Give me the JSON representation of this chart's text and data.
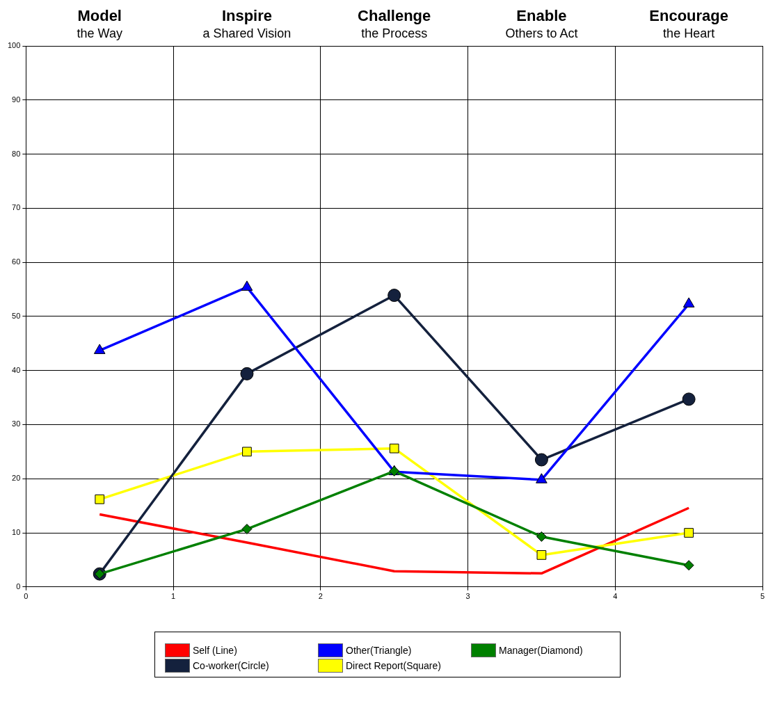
{
  "chart_data": {
    "type": "line",
    "x": [
      0.5,
      1.5,
      2.5,
      3.5,
      4.5
    ],
    "xlim": [
      0,
      5
    ],
    "xticks": [
      0,
      1,
      2,
      3,
      4,
      5
    ],
    "ylim": [
      0,
      100
    ],
    "yticks": [
      0,
      10,
      20,
      30,
      40,
      50,
      60,
      70,
      80,
      90,
      100
    ],
    "grid": true,
    "legend": "bottom",
    "annotations": [
      "Model",
      "the Way",
      "Inspire",
      "a Shared Vision",
      "Challenge",
      "the Process",
      "Enable",
      "Others to Act",
      "Encourage",
      "the Heart"
    ],
    "series": [
      {
        "name": "Self (Line)",
        "color": "#ff0000",
        "marker": "none",
        "values": [
          13.4,
          8.2,
          2.9,
          2.5,
          14.6
        ]
      },
      {
        "name": "Other(Triangle)",
        "color": "#0000ff",
        "marker": "triangle",
        "values": [
          43.7,
          55.4,
          21.3,
          19.8,
          52.3
        ]
      },
      {
        "name": "Manager(Diamond)",
        "color": "#008000",
        "marker": "diamond",
        "values": [
          2.4,
          10.7,
          21.4,
          9.3,
          4.0
        ]
      },
      {
        "name": "Co-worker(Circle)",
        "color": "#14213d",
        "marker": "circle",
        "values": [
          2.4,
          39.4,
          53.9,
          23.5,
          34.7
        ]
      },
      {
        "name": "Direct Report(Square)",
        "color": "#ffff00",
        "marker": "square",
        "values": [
          16.2,
          25.0,
          25.6,
          5.9,
          10.0
        ]
      }
    ]
  }
}
